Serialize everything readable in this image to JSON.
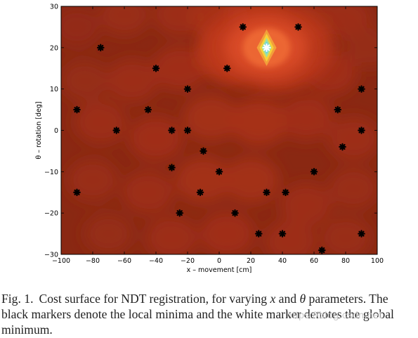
{
  "chart_data": {
    "type": "heatmap",
    "title": "",
    "xlabel": "x  – movement [cm]",
    "ylabel": "θ – rotation [deg]",
    "xlim": [
      -100,
      100
    ],
    "ylim": [
      -30,
      30
    ],
    "xticks": [
      -100,
      -80,
      -60,
      -40,
      -20,
      0,
      20,
      40,
      60,
      80,
      100
    ],
    "yticks": [
      -30,
      -20,
      -10,
      0,
      10,
      20,
      30
    ],
    "xtick_labels": [
      "−100",
      "−80",
      "−60",
      "−40",
      "−20",
      "0",
      "20",
      "40",
      "60",
      "80",
      "100"
    ],
    "ytick_labels": [
      "−30",
      "−20",
      "−10",
      "0",
      "10",
      "20",
      "30"
    ],
    "colors": {
      "background": "#8a2812",
      "mid": "#b8361c",
      "high": "#e8542c",
      "peak": "#f7d138",
      "global_marker": "#ffffff",
      "local_marker": "#000000"
    },
    "global_minimum": {
      "x": 30,
      "y": 20
    },
    "local_minima": [
      {
        "x": 15,
        "y": 25
      },
      {
        "x": 50,
        "y": 25
      },
      {
        "x": -75,
        "y": 20
      },
      {
        "x": -40,
        "y": 15
      },
      {
        "x": 5,
        "y": 15
      },
      {
        "x": -20,
        "y": 10
      },
      {
        "x": 90,
        "y": 10
      },
      {
        "x": -90,
        "y": 5
      },
      {
        "x": -45,
        "y": 5
      },
      {
        "x": 75,
        "y": 5
      },
      {
        "x": -65,
        "y": 0
      },
      {
        "x": -30,
        "y": 0
      },
      {
        "x": -20,
        "y": 0
      },
      {
        "x": 90,
        "y": 0
      },
      {
        "x": -10,
        "y": -5
      },
      {
        "x": 78,
        "y": -4
      },
      {
        "x": -30,
        "y": -9
      },
      {
        "x": 0,
        "y": -10
      },
      {
        "x": 60,
        "y": -10
      },
      {
        "x": -90,
        "y": -15
      },
      {
        "x": -12,
        "y": -15
      },
      {
        "x": 30,
        "y": -15
      },
      {
        "x": 42,
        "y": -15
      },
      {
        "x": -25,
        "y": -20
      },
      {
        "x": 10,
        "y": -20
      },
      {
        "x": 25,
        "y": -25
      },
      {
        "x": 40,
        "y": -25
      },
      {
        "x": 90,
        "y": -25
      },
      {
        "x": 65,
        "y": -29
      }
    ],
    "patches": [
      {
        "x": -90,
        "y": 25,
        "level": 0.15
      },
      {
        "x": -60,
        "y": 28,
        "level": 0.25
      },
      {
        "x": -25,
        "y": 28,
        "level": 0.3
      },
      {
        "x": 0,
        "y": 27,
        "level": 0.45
      },
      {
        "x": 25,
        "y": 28,
        "level": 0.55
      },
      {
        "x": 55,
        "y": 26,
        "level": 0.4
      },
      {
        "x": 80,
        "y": 27,
        "level": 0.3
      },
      {
        "x": 95,
        "y": 20,
        "level": 0.2
      },
      {
        "x": -85,
        "y": 12,
        "level": 0.2
      },
      {
        "x": -55,
        "y": 12,
        "level": 0.3
      },
      {
        "x": -25,
        "y": 15,
        "level": 0.35
      },
      {
        "x": 5,
        "y": 18,
        "level": 0.55
      },
      {
        "x": 40,
        "y": 15,
        "level": 0.4
      },
      {
        "x": 70,
        "y": 14,
        "level": 0.35
      },
      {
        "x": -75,
        "y": 2,
        "level": 0.3
      },
      {
        "x": -40,
        "y": -2,
        "level": 0.35
      },
      {
        "x": -5,
        "y": 3,
        "level": 0.4
      },
      {
        "x": 25,
        "y": 2,
        "level": 0.45
      },
      {
        "x": 55,
        "y": 3,
        "level": 0.35
      },
      {
        "x": 85,
        "y": -2,
        "level": 0.3
      },
      {
        "x": -80,
        "y": -12,
        "level": 0.25
      },
      {
        "x": -45,
        "y": -15,
        "level": 0.3
      },
      {
        "x": -10,
        "y": -12,
        "level": 0.4
      },
      {
        "x": 20,
        "y": -12,
        "level": 0.4
      },
      {
        "x": 55,
        "y": -18,
        "level": 0.3
      },
      {
        "x": 85,
        "y": -14,
        "level": 0.25
      },
      {
        "x": -70,
        "y": -25,
        "level": 0.2
      },
      {
        "x": -30,
        "y": -26,
        "level": 0.3
      },
      {
        "x": 5,
        "y": -25,
        "level": 0.35
      },
      {
        "x": 45,
        "y": -27,
        "level": 0.3
      },
      {
        "x": 80,
        "y": -26,
        "level": 0.25
      }
    ]
  },
  "caption": {
    "label": "Fig. 1.",
    "text_before_x": "Cost surface for NDT registration, for varying ",
    "var_x": "x",
    "text_and": " and ",
    "var_theta": "θ",
    "text_rest": " parameters. The black markers denote the local minima and the white marker denotes the global minimum."
  },
  "watermark": "https://blog.csdn.net"
}
